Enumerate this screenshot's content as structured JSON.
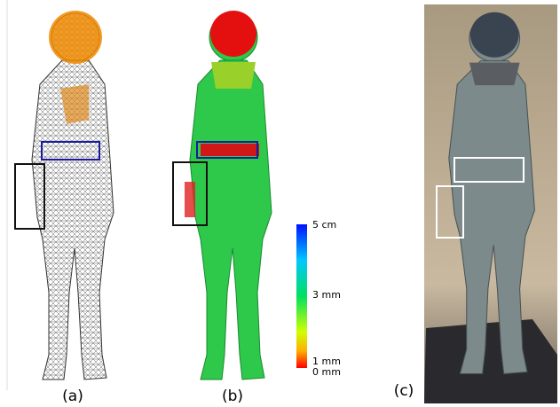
{
  "panels": [
    {
      "label": "(a)"
    },
    {
      "label": "(b)"
    },
    {
      "label": "(c)"
    }
  ],
  "colorbar": {
    "labels": [
      "5 cm",
      "3 mm",
      "1 mm",
      "0 mm"
    ]
  }
}
